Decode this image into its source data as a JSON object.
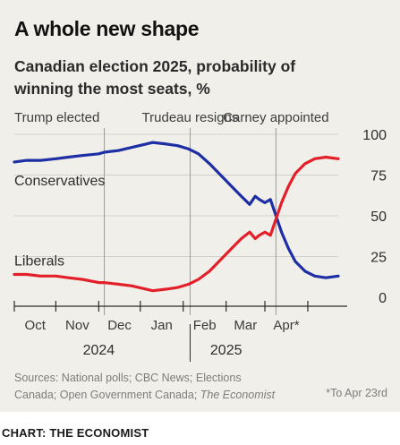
{
  "header": {
    "title": "A whole new shape",
    "subtitle_line1": "Canadian election 2025, probability of",
    "subtitle_line2": "winning the most seats, %"
  },
  "footer": {
    "sources_prefix": "Sources: National polls; CBC News; Elections Canada; Open Government Canada; ",
    "sources_italic": "The Economist",
    "footnote": "*To Apr 23rd",
    "credit": "CHART: THE ECONOMIST"
  },
  "colors": {
    "conservatives": "#1e2fa5",
    "liberals": "#e3202a",
    "grid": "#d2d0ca",
    "event_line": "#9a9a9a",
    "axis": "#2b2b2b",
    "background": "#f1efe9"
  },
  "chart_data": {
    "type": "line",
    "title": "Canadian election 2025, probability of winning the most seats, %",
    "xlabel": "",
    "ylabel": "",
    "ylim": [
      0,
      100
    ],
    "y_ticks": [
      0,
      25,
      50,
      75,
      100
    ],
    "grid": "horizontal",
    "x_domain": [
      "2024-09-01",
      "2025-04-23"
    ],
    "x_ticks": [
      {
        "label": "Oct",
        "date": "2024-10-01"
      },
      {
        "label": "Nov",
        "date": "2024-11-01"
      },
      {
        "label": "Dec",
        "date": "2024-12-01"
      },
      {
        "label": "Jan",
        "date": "2025-01-01"
      },
      {
        "label": "Feb",
        "date": "2025-02-01"
      },
      {
        "label": "Mar",
        "date": "2025-03-01"
      },
      {
        "label": "Apr*",
        "date": "2025-04-01"
      }
    ],
    "year_labels": [
      {
        "label": "2024",
        "date": "2024-11-01"
      },
      {
        "label": "2025",
        "date": "2025-02-01"
      }
    ],
    "events": [
      {
        "label": "Trump elected",
        "date": "2024-11-05"
      },
      {
        "label": "Trudeau resigns",
        "date": "2025-01-06"
      },
      {
        "label": "Carney appointed",
        "date": "2025-03-09"
      }
    ],
    "series": [
      {
        "name": "Conservatives",
        "color": "#1e2fa5",
        "points": [
          [
            "2024-09-01",
            83
          ],
          [
            "2024-09-10",
            84
          ],
          [
            "2024-09-20",
            84
          ],
          [
            "2024-10-01",
            85
          ],
          [
            "2024-10-10",
            86
          ],
          [
            "2024-10-20",
            87
          ],
          [
            "2024-11-01",
            88
          ],
          [
            "2024-11-05",
            89
          ],
          [
            "2024-11-15",
            90
          ],
          [
            "2024-11-25",
            92
          ],
          [
            "2024-12-05",
            94
          ],
          [
            "2024-12-10",
            95
          ],
          [
            "2024-12-20",
            94
          ],
          [
            "2024-12-28",
            93
          ],
          [
            "2025-01-05",
            91
          ],
          [
            "2025-01-12",
            88
          ],
          [
            "2025-01-20",
            82
          ],
          [
            "2025-01-28",
            75
          ],
          [
            "2025-02-05",
            68
          ],
          [
            "2025-02-12",
            62
          ],
          [
            "2025-02-18",
            57
          ],
          [
            "2025-02-22",
            62
          ],
          [
            "2025-02-25",
            60
          ],
          [
            "2025-03-01",
            58
          ],
          [
            "2025-03-05",
            60
          ],
          [
            "2025-03-09",
            50
          ],
          [
            "2025-03-13",
            40
          ],
          [
            "2025-03-18",
            30
          ],
          [
            "2025-03-23",
            22
          ],
          [
            "2025-03-30",
            16
          ],
          [
            "2025-04-06",
            13
          ],
          [
            "2025-04-14",
            12
          ],
          [
            "2025-04-23",
            13
          ]
        ]
      },
      {
        "name": "Liberals",
        "color": "#e3202a",
        "points": [
          [
            "2024-09-01",
            14
          ],
          [
            "2024-09-10",
            14
          ],
          [
            "2024-09-20",
            13
          ],
          [
            "2024-10-01",
            13
          ],
          [
            "2024-10-10",
            12
          ],
          [
            "2024-10-20",
            11
          ],
          [
            "2024-11-01",
            9
          ],
          [
            "2024-11-05",
            9
          ],
          [
            "2024-11-15",
            8
          ],
          [
            "2024-11-25",
            7
          ],
          [
            "2024-12-05",
            5
          ],
          [
            "2024-12-10",
            4
          ],
          [
            "2024-12-20",
            5
          ],
          [
            "2024-12-28",
            6
          ],
          [
            "2025-01-05",
            8
          ],
          [
            "2025-01-12",
            11
          ],
          [
            "2025-01-20",
            16
          ],
          [
            "2025-01-28",
            23
          ],
          [
            "2025-02-05",
            30
          ],
          [
            "2025-02-12",
            36
          ],
          [
            "2025-02-18",
            40
          ],
          [
            "2025-02-22",
            36
          ],
          [
            "2025-02-25",
            38
          ],
          [
            "2025-03-01",
            40
          ],
          [
            "2025-03-05",
            38
          ],
          [
            "2025-03-09",
            48
          ],
          [
            "2025-03-13",
            58
          ],
          [
            "2025-03-18",
            68
          ],
          [
            "2025-03-23",
            76
          ],
          [
            "2025-03-30",
            82
          ],
          [
            "2025-04-06",
            85
          ],
          [
            "2025-04-14",
            86
          ],
          [
            "2025-04-23",
            85
          ]
        ]
      }
    ]
  }
}
